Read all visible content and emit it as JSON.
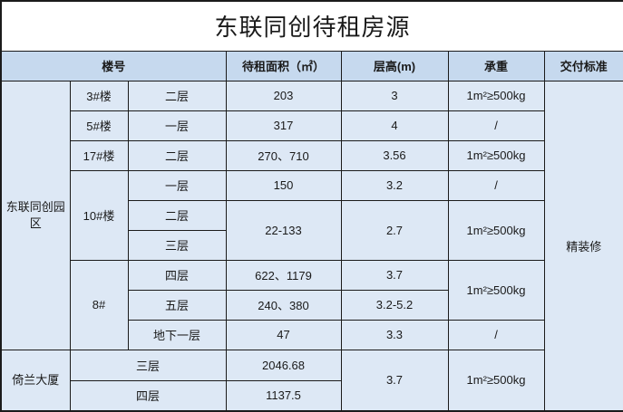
{
  "title": "东联同创待租房源",
  "headers": {
    "building": "楼号",
    "area": "待租面积（㎡）",
    "height": "层高(m)",
    "load": "承重",
    "delivery": "交付标准"
  },
  "parks": [
    {
      "name": "东联同创园区"
    },
    {
      "name": "倚兰大厦"
    }
  ],
  "buildings": {
    "b3": "3#楼",
    "b5": "5#楼",
    "b17": "17#楼",
    "b10": "10#楼",
    "b8": "8#"
  },
  "rows": [
    {
      "floor": "二层",
      "area": "203",
      "height": "3",
      "load": "1m²≥500kg"
    },
    {
      "floor": "一层",
      "area": "317",
      "height": "4",
      "load": "/"
    },
    {
      "floor": "二层",
      "area": "270、710",
      "height": "3.56",
      "load": "1m²≥500kg"
    },
    {
      "floor": "一层",
      "area": "150",
      "height": "3.2",
      "load": "/"
    },
    {
      "floor": "二层",
      "area": "22-133",
      "height": "2.7",
      "load": "1m²≥500kg"
    },
    {
      "floor": "三层"
    },
    {
      "floor": "四层",
      "area": "622、1179",
      "height": "3.7",
      "load": "1m²≥500kg"
    },
    {
      "floor": "五层",
      "area": "240、380",
      "height": "3.2-5.2"
    },
    {
      "floor": "地下一层",
      "area": "47",
      "height": "3.3",
      "load": "/"
    },
    {
      "floor": "三层",
      "area": "2046.68",
      "height": "3.7",
      "load": "1m²≥500kg"
    },
    {
      "floor": "四层",
      "area": "1137.5"
    }
  ],
  "delivery_standard": "精装修"
}
